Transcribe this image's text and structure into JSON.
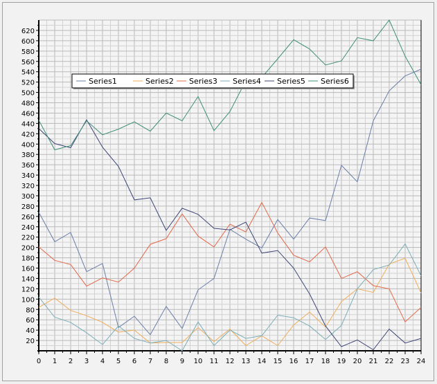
{
  "chart_data": {
    "type": "line",
    "x": [
      0,
      1,
      2,
      3,
      4,
      5,
      6,
      7,
      8,
      9,
      10,
      11,
      12,
      13,
      14,
      15,
      16,
      17,
      18,
      19,
      20,
      21,
      22,
      23,
      24
    ],
    "xlim": [
      0,
      24
    ],
    "ylim": [
      0,
      640
    ],
    "y_ticks": [
      20,
      40,
      60,
      80,
      100,
      120,
      140,
      160,
      180,
      200,
      220,
      240,
      260,
      280,
      300,
      320,
      340,
      360,
      380,
      400,
      420,
      440,
      460,
      480,
      500,
      520,
      540,
      560,
      580,
      600,
      620
    ],
    "grid": true,
    "legend_position": "top-left",
    "series": [
      {
        "name": "Series1",
        "color": "#6b7fa8",
        "values": [
          268,
          211,
          229,
          153,
          169,
          45,
          67,
          31,
          86,
          43,
          118,
          140,
          235,
          216,
          199,
          254,
          216,
          257,
          252,
          359,
          327,
          445,
          503,
          532,
          545
        ]
      },
      {
        "name": "Series2",
        "color": "#f0ae5a",
        "values": [
          84,
          102,
          78,
          68,
          55,
          36,
          40,
          15,
          16,
          16,
          45,
          18,
          42,
          10,
          29,
          10,
          50,
          75,
          46,
          95,
          120,
          113,
          168,
          179,
          112
        ]
      },
      {
        "name": "Series3",
        "color": "#e3694a",
        "values": [
          201,
          175,
          167,
          125,
          141,
          133,
          160,
          206,
          217,
          265,
          222,
          201,
          245,
          230,
          287,
          228,
          185,
          172,
          201,
          140,
          153,
          126,
          120,
          56,
          84
        ]
      },
      {
        "name": "Series4",
        "color": "#7aaeb8",
        "values": [
          104,
          65,
          55,
          35,
          12,
          48,
          24,
          15,
          20,
          0,
          56,
          10,
          40,
          24,
          29,
          69,
          64,
          48,
          22,
          49,
          120,
          157,
          166,
          207,
          145
        ]
      },
      {
        "name": "Series5",
        "color": "#3e4577",
        "values": [
          430,
          401,
          393,
          447,
          394,
          357,
          292,
          296,
          233,
          276,
          264,
          237,
          234,
          249,
          189,
          194,
          160,
          110,
          48,
          8,
          21,
          2,
          42,
          15,
          24
        ]
      },
      {
        "name": "Series6",
        "color": "#3f8f79",
        "values": [
          446,
          389,
          397,
          445,
          418,
          429,
          443,
          425,
          460,
          445,
          492,
          426,
          463,
          523,
          529,
          565,
          602,
          584,
          553,
          561,
          606,
          600,
          640,
          570,
          515
        ]
      }
    ]
  }
}
